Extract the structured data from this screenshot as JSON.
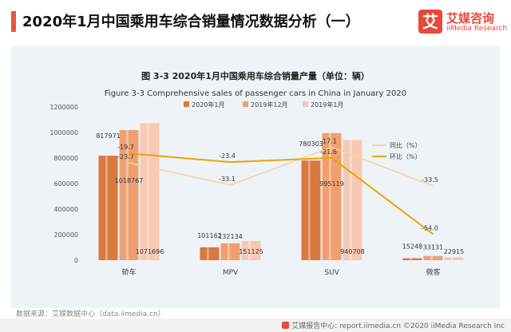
{
  "header": {
    "title": "2020年1月中国乘用车综合销量情况数据分析（一）"
  },
  "logo": {
    "name": "艾媒咨询",
    "sub": "iiMedia Research",
    "glyph": "艾"
  },
  "source_note": "数据来源：艾媒数据中心（data.iimedia.cn）",
  "footer": {
    "text": "艾媒报告中心: report.iimedia.cn ©2020 iiMedia Research Inc"
  },
  "chart_data": {
    "type": "bar",
    "title": "图 3-3 2020年1月中国乘用车综合销量产量（单位：辆）",
    "subtitle": "Figure 3-3 Comprehensive sales of passenger cars in China in January 2020",
    "categories": [
      "轿车",
      "MPV",
      "SUV",
      "微客"
    ],
    "ylim": [
      0,
      1200000
    ],
    "yticks": [
      0,
      200000,
      400000,
      600000,
      800000,
      1000000,
      1200000
    ],
    "series": [
      {
        "name": "2020年1月",
        "values": [
          817971,
          101162,
          780303,
          15248
        ],
        "color": "#d9783f"
      },
      {
        "name": "2019年12月",
        "values": [
          1018767,
          132134,
          995119,
          33131
        ],
        "color": "#f0a070"
      },
      {
        "name": "2019年1月",
        "values": [
          1071696,
          151125,
          940708,
          22915
        ],
        "color": "#f7c9b3"
      }
    ],
    "line_series": [
      {
        "name": "同比（%）",
        "values": [
          -23.7,
          -33.1,
          -17.1,
          -33.5
        ],
        "color": "#f5d3a8"
      },
      {
        "name": "环比（%）",
        "values": [
          -19.7,
          -23.4,
          -21.6,
          -54.0
        ],
        "color": "#e8a400"
      }
    ],
    "line_labels": {
      "同比（%）": [
        "-23.7",
        "-33.1",
        "-17.1",
        "-33.5"
      ],
      "环比（%）": [
        "-19.7",
        "-23.4",
        "-21.6",
        "-54.0"
      ]
    },
    "line_ylim": [
      -65,
      0
    ]
  }
}
